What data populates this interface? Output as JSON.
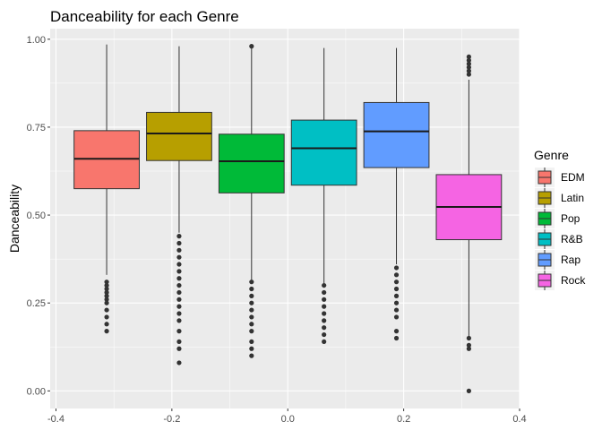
{
  "chart_data": {
    "type": "boxplot",
    "title": "Danceability for each Genre",
    "xlabel": "",
    "ylabel": "Danceability",
    "xlim": [
      -0.41,
      0.4
    ],
    "ylim": [
      -0.05,
      1.03
    ],
    "x_ticks": [
      -0.4,
      -0.2,
      0.0,
      0.2,
      0.4
    ],
    "x_tick_labels": [
      "-0.4",
      "-0.2",
      "0.0",
      "0.2",
      "0.4"
    ],
    "y_ticks": [
      0.0,
      0.25,
      0.5,
      0.75,
      1.0
    ],
    "y_tick_labels": [
      "0.00",
      "0.25",
      "0.50",
      "0.75",
      "1.00"
    ],
    "grid": true,
    "legend": {
      "title": "Genre",
      "position": "right"
    },
    "series": [
      {
        "name": "EDM",
        "color": "#F8766D",
        "x_center": -0.3125,
        "width": 0.1125,
        "q1": 0.575,
        "median": 0.66,
        "q3": 0.74,
        "whisker_low": 0.33,
        "whisker_high": 0.985,
        "outliers": [
          0.31,
          0.3,
          0.29,
          0.28,
          0.27,
          0.26,
          0.25,
          0.23,
          0.21,
          0.19,
          0.17
        ]
      },
      {
        "name": "Latin",
        "color": "#B79F00",
        "x_center": -0.1875,
        "width": 0.1125,
        "q1": 0.655,
        "median": 0.732,
        "q3": 0.792,
        "whisker_low": 0.45,
        "whisker_high": 0.98,
        "outliers": [
          0.44,
          0.42,
          0.4,
          0.38,
          0.36,
          0.34,
          0.32,
          0.3,
          0.28,
          0.26,
          0.24,
          0.22,
          0.2,
          0.17,
          0.14,
          0.12,
          0.08
        ]
      },
      {
        "name": "Pop",
        "color": "#00BA38",
        "x_center": -0.0625,
        "width": 0.1125,
        "q1": 0.563,
        "median": 0.653,
        "q3": 0.73,
        "whisker_low": 0.315,
        "whisker_high": 0.975,
        "outliers": [
          0.98,
          0.31,
          0.29,
          0.27,
          0.25,
          0.23,
          0.21,
          0.19,
          0.17,
          0.14,
          0.12,
          0.1
        ]
      },
      {
        "name": "R&B",
        "color": "#00BFC4",
        "x_center": 0.0625,
        "width": 0.1125,
        "q1": 0.585,
        "median": 0.69,
        "q3": 0.77,
        "whisker_low": 0.305,
        "whisker_high": 0.975,
        "outliers": [
          0.3,
          0.28,
          0.26,
          0.24,
          0.22,
          0.2,
          0.18,
          0.16,
          0.14
        ]
      },
      {
        "name": "Rap",
        "color": "#619CFF",
        "x_center": 0.1875,
        "width": 0.1125,
        "q1": 0.635,
        "median": 0.738,
        "q3": 0.82,
        "whisker_low": 0.36,
        "whisker_high": 0.975,
        "outliers": [
          0.35,
          0.33,
          0.31,
          0.29,
          0.27,
          0.25,
          0.23,
          0.21,
          0.17,
          0.15
        ]
      },
      {
        "name": "Rock",
        "color": "#F564E3",
        "x_center": 0.3125,
        "width": 0.1125,
        "q1": 0.43,
        "median": 0.523,
        "q3": 0.615,
        "whisker_low": 0.155,
        "whisker_high": 0.885,
        "outliers": [
          0.95,
          0.94,
          0.93,
          0.92,
          0.91,
          0.9,
          0.15,
          0.13,
          0.12,
          0.0
        ]
      }
    ]
  }
}
